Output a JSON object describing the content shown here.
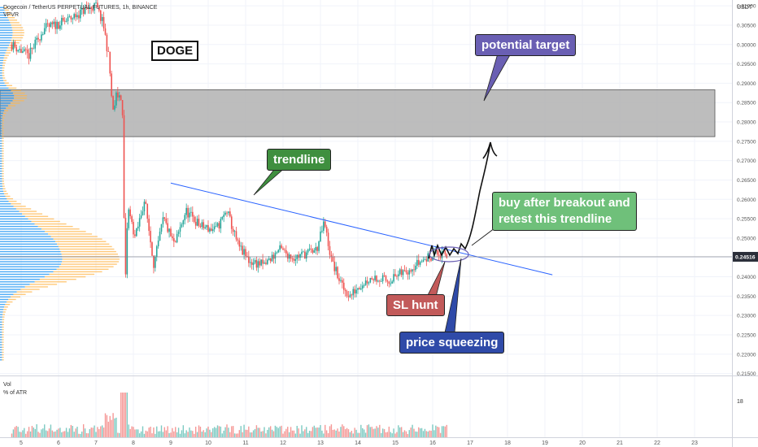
{
  "header": {
    "symbol_line": "Dogecoin / TetherUS PERPETUAL FUTURES, 1h, BINANCE",
    "indicator": "VPVR",
    "currency": "USDT"
  },
  "volume_pane": {
    "label": "Vol",
    "sub_label": "% of ATR",
    "axis_tick": "18"
  },
  "chart_data": {
    "type": "candlestick",
    "symbol": "DOGEUSDT",
    "timeframe": "1h",
    "x_ticks": [
      "5",
      "6",
      "7",
      "8",
      "9",
      "10",
      "11",
      "12",
      "13",
      "14",
      "15",
      "16",
      "17",
      "18",
      "19",
      "20",
      "21",
      "22",
      "23"
    ],
    "y_ticks": [
      "0.31000",
      "0.30500",
      "0.30000",
      "0.29500",
      "0.29000",
      "0.28500",
      "0.28000",
      "0.27500",
      "0.27000",
      "0.26500",
      "0.26000",
      "0.25500",
      "0.25000",
      "0.24500",
      "0.24000",
      "0.23500",
      "0.23000",
      "0.22500",
      "0.22000",
      "0.21500"
    ],
    "ylim": [
      0.2145,
      0.3115
    ],
    "last_price": "0.24516",
    "price_path": [
      {
        "day": 4.75,
        "price": 0.3
      },
      {
        "day": 5.2,
        "price": 0.297
      },
      {
        "day": 5.6,
        "price": 0.304
      },
      {
        "day": 6.2,
        "price": 0.306
      },
      {
        "day": 6.7,
        "price": 0.309
      },
      {
        "day": 7.0,
        "price": 0.31
      },
      {
        "day": 7.2,
        "price": 0.305
      },
      {
        "day": 7.35,
        "price": 0.296
      },
      {
        "day": 7.45,
        "price": 0.282
      },
      {
        "day": 7.55,
        "price": 0.287
      },
      {
        "day": 7.7,
        "price": 0.2865
      },
      {
        "day": 7.78,
        "price": 0.236
      },
      {
        "day": 7.85,
        "price": 0.258
      },
      {
        "day": 8.05,
        "price": 0.25
      },
      {
        "day": 8.3,
        "price": 0.26
      },
      {
        "day": 8.55,
        "price": 0.243
      },
      {
        "day": 8.8,
        "price": 0.255
      },
      {
        "day": 9.1,
        "price": 0.248
      },
      {
        "day": 9.4,
        "price": 0.257
      },
      {
        "day": 9.8,
        "price": 0.253
      },
      {
        "day": 10.2,
        "price": 0.252
      },
      {
        "day": 10.5,
        "price": 0.257
      },
      {
        "day": 10.8,
        "price": 0.248
      },
      {
        "day": 11.1,
        "price": 0.244
      },
      {
        "day": 11.5,
        "price": 0.243
      },
      {
        "day": 11.9,
        "price": 0.247
      },
      {
        "day": 12.3,
        "price": 0.245
      },
      {
        "day": 12.6,
        "price": 0.246
      },
      {
        "day": 12.9,
        "price": 0.247
      },
      {
        "day": 13.1,
        "price": 0.254
      },
      {
        "day": 13.3,
        "price": 0.244
      },
      {
        "day": 13.6,
        "price": 0.237
      },
      {
        "day": 13.8,
        "price": 0.235
      },
      {
        "day": 14.0,
        "price": 0.2375
      },
      {
        "day": 14.4,
        "price": 0.24
      },
      {
        "day": 14.8,
        "price": 0.239
      },
      {
        "day": 15.2,
        "price": 0.241
      },
      {
        "day": 15.5,
        "price": 0.243
      },
      {
        "day": 15.8,
        "price": 0.2445
      },
      {
        "day": 16.05,
        "price": 0.246
      },
      {
        "day": 16.4,
        "price": 0.2452
      }
    ],
    "trendline": {
      "start": {
        "day": 9.0,
        "price": 0.2642
      },
      "end": {
        "day": 19.2,
        "price": 0.2405
      }
    },
    "resistance_zone": [
      0.2762,
      0.2883
    ],
    "current_price_line": 0.24516,
    "annotations": [
      "DOGE",
      "trendline",
      "potential target",
      "buy after breakout and\nretest this trendline",
      "SL hunt",
      "price squeezing"
    ],
    "colors": {
      "up": "#26a69a",
      "down": "#ef5350",
      "trendline": "#2962ff",
      "zone": "#b2b2b2",
      "profile_blue": "#2196f3",
      "profile_yellow": "#ffb74d"
    }
  },
  "annotations": {
    "doge": "DOGE",
    "trendline": {
      "text": "trendline",
      "bg": "#3f8f3f"
    },
    "potential_target": {
      "text": "potential target",
      "bg": "#6a5fb3"
    },
    "buy_breakout": {
      "line1": "buy after breakout and",
      "line2": "retest this trendline",
      "bg": "#6fc07a"
    },
    "sl_hunt": {
      "text": "SL hunt",
      "bg": "#c25a5a"
    },
    "price_squeezing": {
      "text": "price squeezing",
      "bg": "#2f4aa8"
    }
  }
}
